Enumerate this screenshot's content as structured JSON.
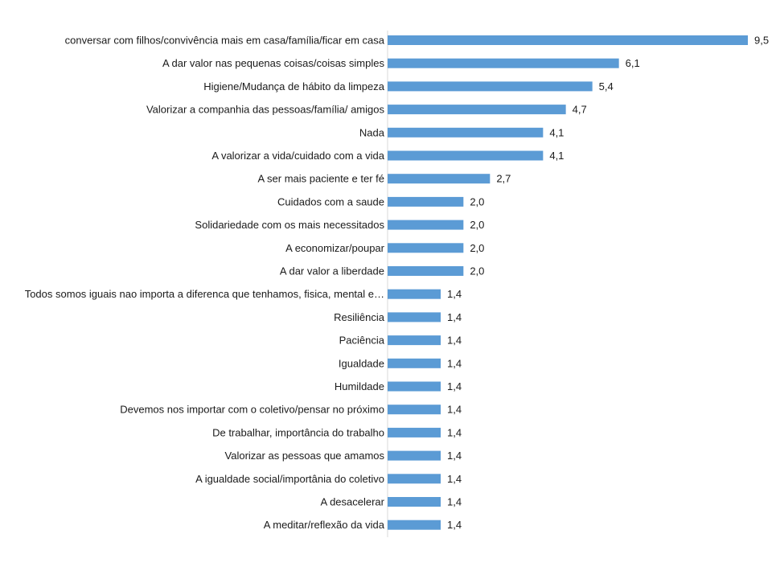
{
  "chart_data": {
    "type": "bar",
    "orientation": "horizontal",
    "categories": [
      "conversar com filhos/convivência mais em casa/família/ficar em casa",
      "A dar valor nas pequenas coisas/coisas simples",
      "Higiene/Mudança de hábito da limpeza",
      "Valorizar a companhia das pessoas/família/ amigos",
      "Nada",
      "A valorizar a vida/cuidado com a vida",
      "A ser mais paciente e ter fé",
      "Cuidados com a saude",
      "Solidariedade com os mais necessitados",
      "A economizar/poupar",
      "A dar valor a liberdade",
      "Todos somos iguais nao importa a diferenca que tenhamos, fisica, mental e…",
      "Resiliência",
      "Paciência",
      "Igualdade",
      "Humildade",
      "Devemos nos importar com o coletivo/pensar no próximo",
      "De trabalhar, importância do trabalho",
      "Valorizar as pessoas que amamos",
      "A igualdade social/importânia do coletivo",
      "A desacelerar",
      "A meditar/reflexão da vida"
    ],
    "values": [
      9.5,
      6.1,
      5.4,
      4.7,
      4.1,
      4.1,
      2.7,
      2.0,
      2.0,
      2.0,
      2.0,
      1.4,
      1.4,
      1.4,
      1.4,
      1.4,
      1.4,
      1.4,
      1.4,
      1.4,
      1.4,
      1.4
    ],
    "value_labels": [
      "9,5",
      "6,1",
      "5,4",
      "4,7",
      "4,1",
      "4,1",
      "2,7",
      "2,0",
      "2,0",
      "2,0",
      "2,0",
      "1,4",
      "1,4",
      "1,4",
      "1,4",
      "1,4",
      "1,4",
      "1,4",
      "1,4",
      "1,4",
      "1,4",
      "1,4"
    ],
    "title": "",
    "xlabel": "",
    "ylabel": "",
    "xlim": [
      0,
      9.5
    ],
    "grid": false,
    "legend": "none",
    "bar_color": "#5b9bd5"
  }
}
